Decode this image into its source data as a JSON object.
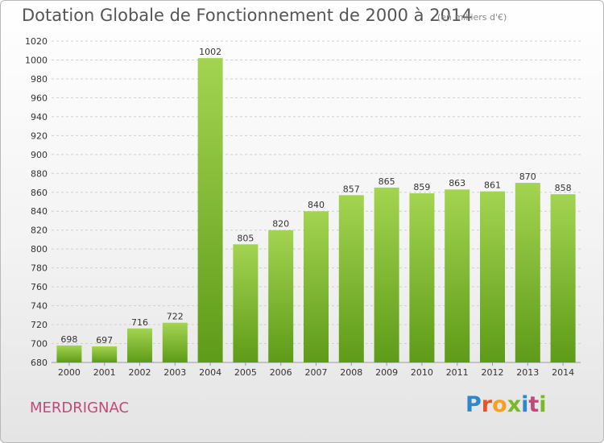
{
  "header": {
    "title": "Dotation Globale de Fonctionnement de 2000 à 2014",
    "subtitle": "(en milliers d'€)"
  },
  "footer": {
    "town": "MERDRIGNAC",
    "logo": [
      "P",
      "r",
      "o",
      "x",
      "i",
      "t",
      "i"
    ]
  },
  "colors": {
    "bar_top": "#a3d451",
    "bar_bottom": "#5e9b18",
    "grid": "#cfcfcf",
    "axis_text": "#333333",
    "town": "#c04a7a"
  },
  "chart_data": {
    "type": "bar",
    "categories": [
      "2000",
      "2001",
      "2002",
      "2003",
      "2004",
      "2005",
      "2006",
      "2007",
      "2008",
      "2009",
      "2010",
      "2011",
      "2012",
      "2013",
      "2014"
    ],
    "values": [
      698,
      697,
      716,
      722,
      1002,
      805,
      820,
      840,
      857,
      865,
      859,
      863,
      861,
      870,
      858
    ],
    "ylim": [
      680,
      1020
    ],
    "ytick_step": 20,
    "grid": true
  }
}
